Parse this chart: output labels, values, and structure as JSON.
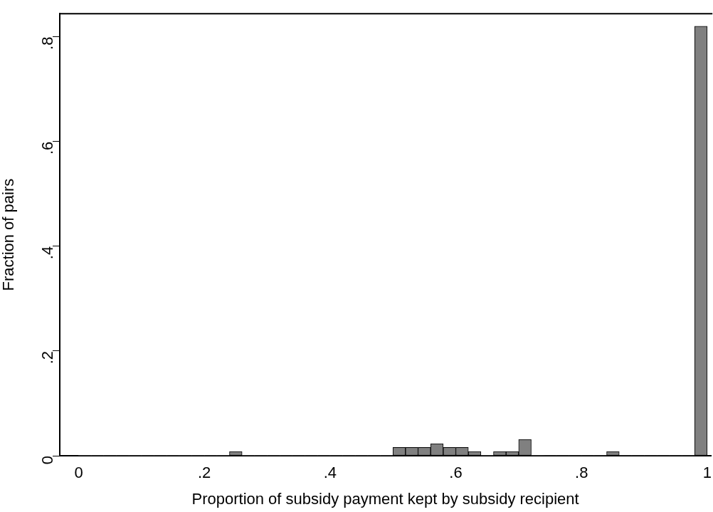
{
  "chart_data": {
    "type": "histogram",
    "xlabel": "Proportion of subsidy payment kept by subsidy recipient",
    "ylabel": "Fraction of pairs",
    "color": "#808080",
    "bins": [
      0,
      0.02,
      0.04,
      0.06,
      0.08,
      0.1,
      0.12,
      0.14,
      0.16,
      0.18,
      0.2,
      0.22,
      0.24,
      0.26,
      0.28,
      0.3,
      0.32,
      0.34,
      0.36,
      0.38,
      0.4,
      0.42,
      0.44,
      0.46,
      0.48,
      0.5,
      0.52,
      0.54,
      0.56,
      0.58,
      0.6,
      0.62,
      0.64,
      0.66,
      0.68,
      0.7,
      0.72,
      0.74,
      0.76,
      0.78,
      0.8,
      0.82,
      0.84,
      0.86,
      0.88,
      0.9,
      0.92,
      0.94,
      0.96,
      0.98,
      1
    ],
    "values": [
      0,
      0,
      0,
      0,
      0,
      0,
      0,
      0,
      0,
      0,
      0,
      0,
      0.008,
      0,
      0,
      0,
      0,
      0,
      0,
      0,
      0,
      0,
      0,
      0,
      0,
      0.016,
      0.016,
      0.016,
      0.023,
      0.016,
      0.016,
      0.008,
      0,
      0.008,
      0.008,
      0.031,
      0,
      0,
      0,
      0,
      0,
      0,
      0.008,
      0,
      0,
      0,
      0,
      0,
      0,
      0.82
    ],
    "xlim": [
      -0.03,
      1.006
    ],
    "xticks": [
      0,
      {
        "value": 0.2,
        "label": ".2"
      },
      {
        "value": 0.4,
        "label": ".4"
      },
      {
        "value": 0.6,
        "label": ".6"
      },
      {
        "value": 0.8,
        "label": ".8"
      },
      1
    ],
    "ylim": [
      0,
      0.844
    ],
    "yticks": [
      0,
      {
        "value": 0.2,
        "label": ".2"
      },
      {
        "value": 0.4,
        "label": ".4"
      },
      {
        "value": 0.6,
        "label": ".6"
      },
      {
        "value": 0.8,
        "label": ".8"
      }
    ],
    "grid": false,
    "legend": false
  }
}
